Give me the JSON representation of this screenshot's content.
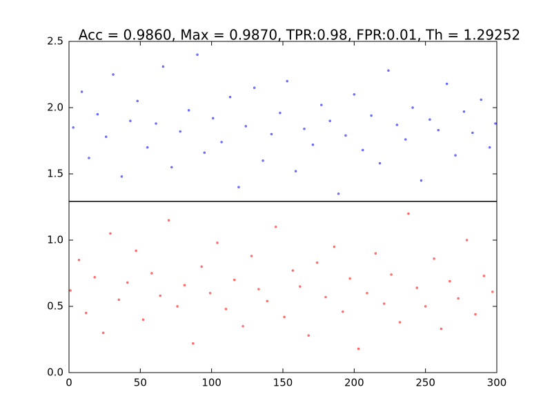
{
  "chart_data": {
    "type": "scatter",
    "title": "Acc = 0.9860, Max = 0.9870, TPR:0.98, FPR:0.01, Th = 1.29252",
    "xlim": [
      0,
      300
    ],
    "xticks": [
      0,
      50,
      100,
      150,
      200,
      250,
      300
    ],
    "ylim": [
      0,
      2.5
    ],
    "yticks": [
      {
        "value": 0,
        "label": "0.0"
      },
      0.5,
      {
        "value": 1,
        "label": "1.0"
      },
      1.5,
      {
        "value": 2,
        "label": "2.0"
      },
      2.5
    ],
    "threshold": 1.29252,
    "series": [
      {
        "color": "#0000ff",
        "x": [
          3,
          9,
          14,
          20,
          26,
          31,
          37,
          43,
          48,
          55,
          61,
          66,
          72,
          78,
          84,
          90,
          95,
          101,
          107,
          113,
          119,
          124,
          130,
          136,
          142,
          148,
          153,
          159,
          165,
          171,
          177,
          183,
          189,
          194,
          200,
          206,
          212,
          218,
          224,
          230,
          236,
          241,
          247,
          253,
          259,
          265,
          271,
          277,
          283,
          289,
          295,
          299
        ],
        "values": [
          1.85,
          2.12,
          1.62,
          1.95,
          1.78,
          2.25,
          1.48,
          1.9,
          2.05,
          1.7,
          1.88,
          2.31,
          1.55,
          1.82,
          1.98,
          2.4,
          1.66,
          1.92,
          1.74,
          2.08,
          1.4,
          1.86,
          2.15,
          1.6,
          1.8,
          1.96,
          2.2,
          1.52,
          1.84,
          1.72,
          2.02,
          1.9,
          1.35,
          1.79,
          2.1,
          1.68,
          1.94,
          1.58,
          2.28,
          1.87,
          1.76,
          2.0,
          1.45,
          1.91,
          1.83,
          2.18,
          1.64,
          1.97,
          1.81,
          2.06,
          1.7,
          1.88
        ]
      },
      {
        "color": "#ff0000",
        "x": [
          1,
          7,
          12,
          18,
          24,
          29,
          35,
          41,
          47,
          52,
          58,
          64,
          70,
          76,
          81,
          87,
          93,
          99,
          104,
          110,
          116,
          122,
          128,
          133,
          139,
          145,
          151,
          157,
          162,
          168,
          174,
          180,
          186,
          192,
          197,
          203,
          209,
          215,
          221,
          226,
          232,
          238,
          244,
          250,
          256,
          261,
          267,
          273,
          279,
          285,
          291,
          297
        ],
        "values": [
          0.62,
          0.85,
          0.45,
          0.72,
          0.3,
          1.05,
          0.55,
          0.68,
          0.92,
          0.4,
          0.75,
          0.58,
          1.15,
          0.5,
          0.66,
          0.22,
          0.8,
          0.6,
          0.98,
          0.48,
          0.7,
          0.35,
          0.88,
          0.63,
          0.54,
          1.1,
          0.42,
          0.77,
          0.65,
          0.28,
          0.83,
          0.57,
          0.95,
          0.46,
          0.71,
          0.18,
          0.6,
          0.9,
          0.52,
          0.74,
          0.38,
          1.2,
          0.64,
          0.5,
          0.86,
          0.33,
          0.69,
          0.56,
          1.0,
          0.44,
          0.73,
          0.61
        ]
      }
    ]
  }
}
